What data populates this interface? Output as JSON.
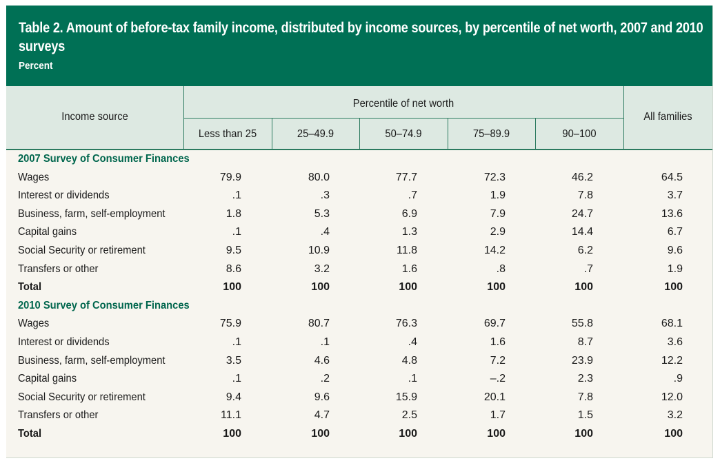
{
  "header": {
    "title": "Table 2. Amount of before-tax family income, distributed by income sources, by percentile of net worth, 2007 and 2010 surveys",
    "unit": "Percent"
  },
  "columns": {
    "row_header": "Income source",
    "group_header": "Percentile of net worth",
    "groups": [
      "Less than 25",
      "25–49.9",
      "50–74.9",
      "75–89.9",
      "90–100"
    ],
    "all": "All families"
  },
  "sections": [
    {
      "title": "2007 Survey of Consumer Finances",
      "rows": [
        {
          "label": "Wages",
          "values": [
            "79.9",
            "80.0",
            "77.7",
            "72.3",
            "46.2",
            "64.5"
          ]
        },
        {
          "label": "Interest or dividends",
          "values": [
            ".1",
            ".3",
            ".7",
            "1.9",
            "7.8",
            "3.7"
          ]
        },
        {
          "label": "Business, farm, self-employment",
          "values": [
            "1.8",
            "5.3",
            "6.9",
            "7.9",
            "24.7",
            "13.6"
          ]
        },
        {
          "label": "Capital gains",
          "values": [
            ".1",
            ".4",
            "1.3",
            "2.9",
            "14.4",
            "6.7"
          ]
        },
        {
          "label": "Social Security or retirement",
          "values": [
            "9.5",
            "10.9",
            "11.8",
            "14.2",
            "6.2",
            "9.6"
          ]
        },
        {
          "label": "Transfers or other",
          "values": [
            "8.6",
            "3.2",
            "1.6",
            ".8",
            ".7",
            "1.9"
          ]
        },
        {
          "label": "Total",
          "values": [
            "100",
            "100",
            "100",
            "100",
            "100",
            "100"
          ],
          "total": true
        }
      ]
    },
    {
      "title": "2010 Survey of Consumer Finances",
      "rows": [
        {
          "label": "Wages",
          "values": [
            "75.9",
            "80.7",
            "76.3",
            "69.7",
            "55.8",
            "68.1"
          ]
        },
        {
          "label": "Interest or dividends",
          "values": [
            ".1",
            ".1",
            ".4",
            "1.6",
            "8.7",
            "3.6"
          ]
        },
        {
          "label": "Business, farm, self-employment",
          "values": [
            "3.5",
            "4.6",
            "4.8",
            "7.2",
            "23.9",
            "12.2"
          ]
        },
        {
          "label": "Capital gains",
          "values": [
            ".1",
            ".2",
            ".1",
            "–.2",
            "2.3",
            ".9"
          ]
        },
        {
          "label": "Social Security or retirement",
          "values": [
            "9.4",
            "9.6",
            "15.9",
            "20.1",
            "7.8",
            "12.0"
          ]
        },
        {
          "label": "Transfers or other",
          "values": [
            "11.1",
            "4.7",
            "2.5",
            "1.7",
            "1.5",
            "3.2"
          ]
        },
        {
          "label": "Total",
          "values": [
            "100",
            "100",
            "100",
            "100",
            "100",
            "100"
          ],
          "total": true
        }
      ]
    }
  ],
  "colors": {
    "header_green": "#007055",
    "header_band": "#dde9e2",
    "section_title": "#00664d",
    "background": "#f7f5ef"
  }
}
